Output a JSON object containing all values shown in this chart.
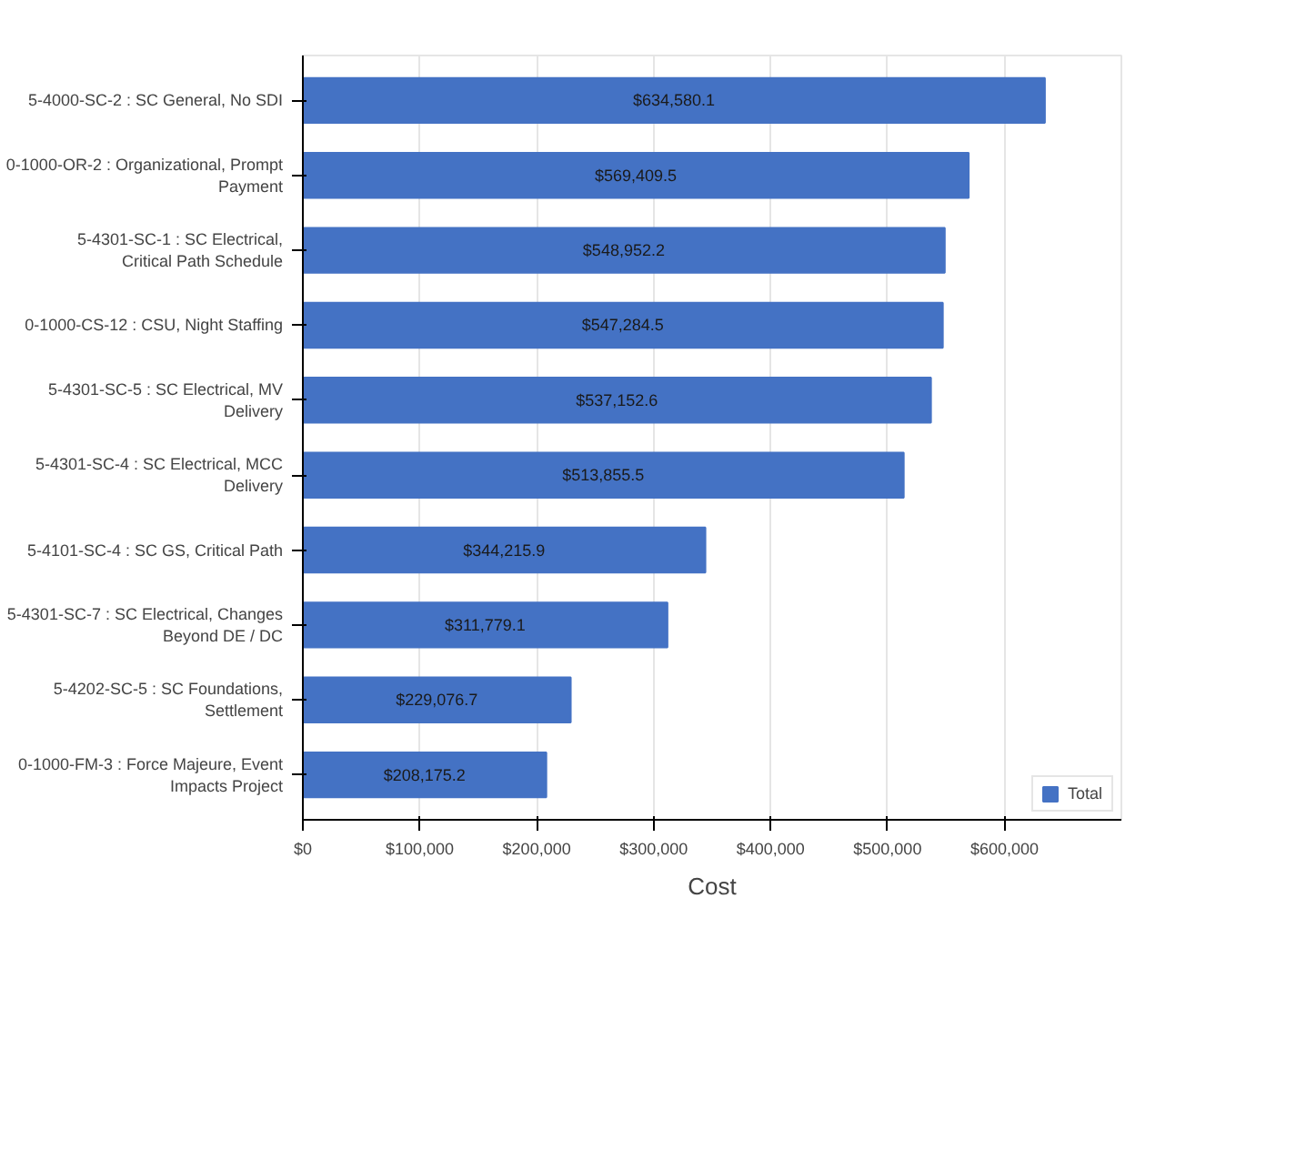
{
  "chart_data": {
    "type": "bar",
    "orientation": "horizontal",
    "xlabel": "Cost",
    "categories": [
      "5-4000-SC-2 : SC General, No SDI",
      "0-1000-OR-2 : Organizational, Prompt Payment",
      "5-4301-SC-1 : SC Electrical, Critical Path Schedule",
      "0-1000-CS-12 : CSU, Night Staffing",
      "5-4301-SC-5 : SC Electrical, MV Delivery",
      "5-4301-SC-4 : SC Electrical, MCC Delivery",
      "5-4101-SC-4 : SC GS, Critical Path",
      "5-4301-SC-7 : SC Electrical, Changes Beyond DE / DC",
      "5-4202-SC-5 : SC Foundations, Settlement",
      "0-1000-FM-3 : Force Majeure, Event Impacts Project"
    ],
    "series": [
      {
        "name": "Total",
        "color": "#4472c4",
        "values": [
          634580.1,
          569409.5,
          548952.2,
          547284.5,
          537152.6,
          513855.5,
          344215.9,
          311779.1,
          229076.7,
          208175.2
        ],
        "value_labels": [
          "$634,580.1",
          "$569,409.5",
          "$548,952.2",
          "$547,284.5",
          "$537,152.6",
          "$513,855.5",
          "$344,215.9",
          "$311,779.1",
          "$229,076.7",
          "$208,175.2"
        ]
      }
    ],
    "xlim": [
      0,
      700000
    ],
    "xticks": [
      {
        "value": 0,
        "label": "$0"
      },
      {
        "value": 100000,
        "label": "$100,000"
      },
      {
        "value": 200000,
        "label": "$200,000"
      },
      {
        "value": 300000,
        "label": "$300,000"
      },
      {
        "value": 400000,
        "label": "$400,000"
      },
      {
        "value": 500000,
        "label": "$500,000"
      },
      {
        "value": 600000,
        "label": "$600,000"
      }
    ],
    "grid": "x",
    "legend": "bottom right"
  }
}
